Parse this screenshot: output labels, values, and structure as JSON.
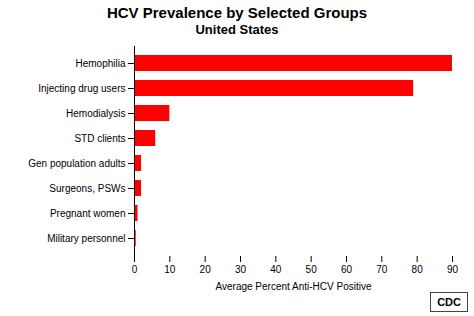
{
  "chart_data": {
    "type": "bar",
    "orientation": "horizontal",
    "title": "HCV Prevalence by Selected Groups",
    "subtitle": "United States",
    "categories": [
      "Military personnel",
      "Pregnant women",
      "Surgeons, PSWs",
      "Gen population adults",
      "STD clients",
      "Hemodialysis",
      "Injecting drug users",
      "Hemophilia"
    ],
    "values": [
      0.5,
      1.0,
      2.0,
      2.0,
      6.0,
      10.0,
      79.0,
      90.0
    ],
    "color": "#ff0000",
    "xlabel": "Average Percent Anti-HCV Positive",
    "xlim": [
      0,
      90
    ],
    "xticks": [
      0,
      10,
      20,
      30,
      40,
      50,
      60,
      70,
      80,
      90
    ],
    "grid": false,
    "annotations": [
      "CDC"
    ]
  }
}
